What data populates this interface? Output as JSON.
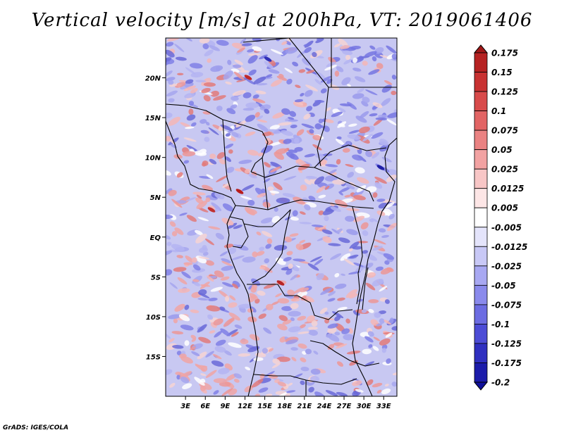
{
  "chart_data": {
    "type": "heatmap",
    "title": "Vertical velocity [m/s] at 200hPa, VT: 2019061406",
    "variable": "Vertical velocity",
    "units": "m/s",
    "level": "200hPa",
    "valid_time": "2019061406",
    "xlabel": "",
    "ylabel": "",
    "x_ticks": [
      {
        "value": 3,
        "label": "3E"
      },
      {
        "value": 6,
        "label": "6E"
      },
      {
        "value": 9,
        "label": "9E"
      },
      {
        "value": 12,
        "label": "12E"
      },
      {
        "value": 15,
        "label": "15E"
      },
      {
        "value": 18,
        "label": "18E"
      },
      {
        "value": 21,
        "label": "21E"
      },
      {
        "value": 24,
        "label": "24E"
      },
      {
        "value": 27,
        "label": "27E"
      },
      {
        "value": 30,
        "label": "30E"
      },
      {
        "value": 33,
        "label": "33E"
      }
    ],
    "y_ticks": [
      {
        "value": 20,
        "label": "20N"
      },
      {
        "value": 15,
        "label": "15N"
      },
      {
        "value": 10,
        "label": "10N"
      },
      {
        "value": 5,
        "label": "5N"
      },
      {
        "value": 0,
        "label": "EQ"
      },
      {
        "value": -5,
        "label": "5S"
      },
      {
        "value": -10,
        "label": "10S"
      },
      {
        "value": -15,
        "label": "15S"
      }
    ],
    "lon_range": [
      0,
      35
    ],
    "lat_range": [
      -20,
      25
    ],
    "colorbar": {
      "orientation": "vertical",
      "labels": [
        "0.175",
        "0.15",
        "0.125",
        "0.1",
        "0.075",
        "0.05",
        "0.025",
        "0.0125",
        "0.005",
        "-0.005",
        "-0.0125",
        "-0.025",
        "-0.05",
        "-0.075",
        "-0.1",
        "-0.125",
        "-0.175",
        "-0.2"
      ],
      "colors": [
        "#a01818",
        "#b62222",
        "#c83232",
        "#d84a4a",
        "#e26464",
        "#ea8282",
        "#f2a2a2",
        "#f8c6c6",
        "#fde6e6",
        "#ffffff",
        "#e4e4fb",
        "#c8c8f6",
        "#a8a8f2",
        "#8a8aec",
        "#6c6ce2",
        "#4c4cd6",
        "#3030c0",
        "#1c1caa",
        "#10109a"
      ]
    },
    "credit": "GrADS: IGES/COLA"
  }
}
